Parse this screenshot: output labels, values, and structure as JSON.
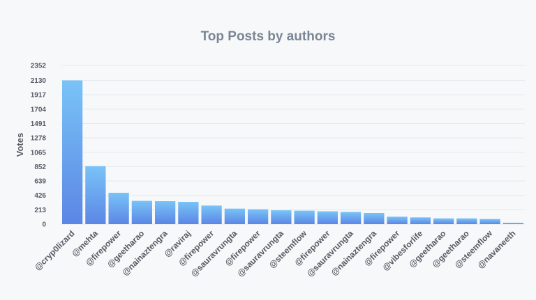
{
  "chart_data": {
    "type": "bar",
    "title": "Top Posts by authors",
    "xlabel": "",
    "ylabel": "Votes",
    "yticks": [
      0,
      213,
      426,
      639,
      852,
      1065,
      1278,
      1491,
      1704,
      1917,
      2130,
      2352
    ],
    "ylim": [
      0,
      2352
    ],
    "grid": true,
    "legend": "none",
    "categories": [
      "@cryp0lizard",
      "@mehta",
      "@firepower",
      "@geetharao",
      "@nainaztengra",
      "@raviraj",
      "@firepower",
      "@sauravrungta",
      "@firepower",
      "@sauravrungta",
      "@steemflow",
      "@firepower",
      "@sauravrungta",
      "@nainaztengra",
      "@firepower",
      "@vibesforlife",
      "@geetharao",
      "@geetharao",
      "@steemflow",
      "@navaneeth"
    ],
    "values": [
      2130,
      860,
      465,
      345,
      340,
      330,
      275,
      230,
      220,
      205,
      200,
      190,
      180,
      165,
      110,
      100,
      85,
      85,
      75,
      20
    ],
    "colors": {
      "bar_top": "#79c3f7",
      "bar_bottom": "#5b86e5",
      "grid": "#e6e9ee",
      "title": "#7b8694",
      "text": "#555b63"
    }
  }
}
